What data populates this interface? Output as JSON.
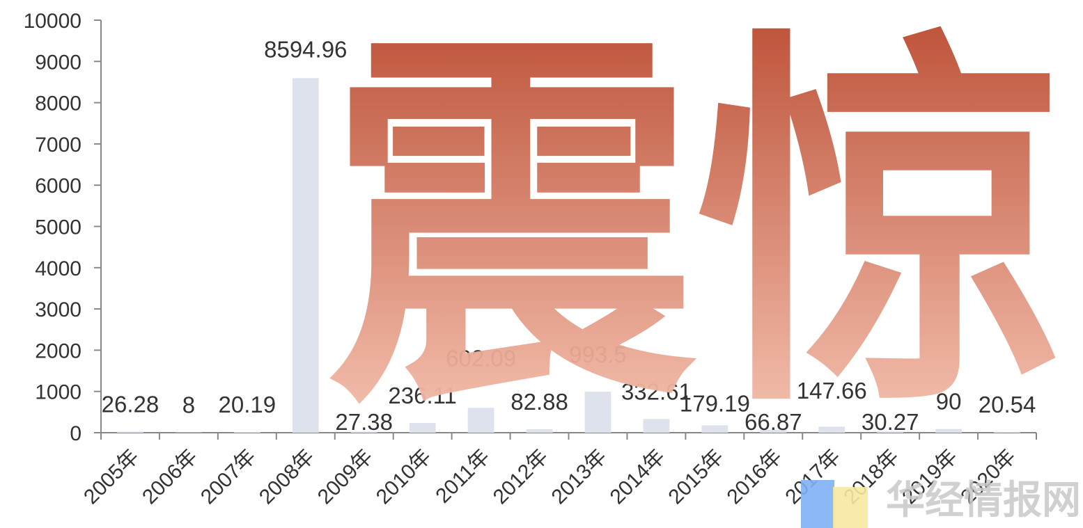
{
  "chart_data": {
    "type": "bar",
    "categories": [
      "2005年",
      "2006年",
      "2007年",
      "2008年",
      "2009年",
      "2010年",
      "2011年",
      "2012年",
      "2013年",
      "2014年",
      "2015年",
      "2016年",
      "2017年",
      "2018年",
      "2019年",
      "2020年"
    ],
    "values": [
      26.28,
      8,
      20.19,
      8594.96,
      27.38,
      236.11,
      602.09,
      82.88,
      993.5,
      332.61,
      179.19,
      66.87,
      147.66,
      30.27,
      90,
      20.54
    ],
    "data_labels": [
      "26.28",
      "8",
      "20.19",
      "8594.96",
      "27.38",
      "236.11",
      "602.09",
      "82.88",
      "993.5",
      "332.61",
      "179.19",
      "66.87",
      "147.66",
      "30.27",
      "90",
      "20.54"
    ],
    "ylim": [
      0,
      10000
    ],
    "yticks": [
      "0",
      "1000",
      "2000",
      "3000",
      "4000",
      "5000",
      "6000",
      "7000",
      "8000",
      "9000",
      "10000"
    ],
    "bar_color": "#dde2ec",
    "grid": false,
    "title": "",
    "xlabel": "",
    "ylabel": ""
  },
  "overlay": {
    "headline": "震惊",
    "gradient_top": "#b8452a",
    "gradient_bottom": "#f8c6b4"
  },
  "watermark": {
    "text": "华经情报网",
    "logo_colors": [
      "#7fb1f5",
      "#f7e9a0"
    ]
  }
}
